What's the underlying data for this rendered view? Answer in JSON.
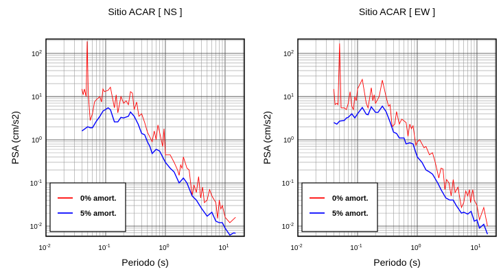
{
  "chart_data": [
    {
      "type": "line",
      "title": "Sitio ACAR [ NS ]",
      "xlabel": "Periodo (s)",
      "ylabel": "PSA (cm/s2)",
      "xscale": "log",
      "yscale": "log",
      "xlim": [
        0.01,
        21
      ],
      "ylim": [
        0.0058,
        215
      ],
      "xticks": [
        {
          "v": 0.01,
          "b": "10",
          "e": "-2"
        },
        {
          "v": 0.1,
          "b": "10",
          "e": "-1"
        },
        {
          "v": 1,
          "b": "10",
          "e": "0"
        },
        {
          "v": 10,
          "b": "10",
          "e": "1"
        }
      ],
      "yticks": [
        {
          "v": 0.01,
          "b": "10",
          "e": "-2"
        },
        {
          "v": 0.1,
          "b": "10",
          "e": "-1"
        },
        {
          "v": 1,
          "b": "10",
          "e": "0"
        },
        {
          "v": 10,
          "b": "10",
          "e": "1"
        },
        {
          "v": 100,
          "b": "10",
          "e": "2"
        }
      ],
      "grid": true,
      "legend_position": "bottom-left",
      "series": [
        {
          "name": "0% amort.",
          "color": "#ff0000",
          "x": [
            0.04,
            0.042,
            0.044,
            0.047,
            0.049,
            0.051,
            0.055,
            0.06,
            0.065,
            0.07,
            0.08,
            0.085,
            0.09,
            0.095,
            0.11,
            0.12,
            0.14,
            0.15,
            0.16,
            0.18,
            0.2,
            0.22,
            0.24,
            0.26,
            0.28,
            0.3,
            0.33,
            0.36,
            0.4,
            0.45,
            0.5,
            0.6,
            0.65,
            0.7,
            0.75,
            0.8,
            0.9,
            0.95,
            1.0,
            1.2,
            1.4,
            1.6,
            1.7,
            1.8,
            1.9,
            2.0,
            2.3,
            2.5,
            2.8,
            3.0,
            3.3,
            3.6,
            3.9,
            4.2,
            4.5,
            5.0,
            5.5,
            6.0,
            7.0,
            7.5,
            8.0,
            8.5,
            9.0,
            10,
            12,
            15
          ],
          "y": [
            15,
            11,
            15,
            10,
            190,
            12,
            2.8,
            4,
            7.5,
            8.5,
            10,
            7.5,
            15,
            13,
            14,
            16.5,
            5.5,
            11,
            4.2,
            10,
            7,
            8,
            6.5,
            13,
            12,
            5,
            7.5,
            3.5,
            4,
            2.5,
            1.5,
            0.9,
            1.6,
            1.0,
            2.2,
            1.5,
            0.7,
            1.8,
            0.45,
            0.45,
            0.3,
            0.2,
            0.15,
            0.26,
            0.22,
            0.4,
            0.22,
            0.2,
            0.05,
            0.09,
            0.06,
            0.14,
            0.045,
            0.08,
            0.035,
            0.04,
            0.07,
            0.05,
            0.035,
            0.015,
            0.04,
            0.025,
            0.03,
            0.016,
            0.012,
            0.016
          ]
        },
        {
          "name": "5% amort.",
          "color": "#0000ff",
          "x": [
            0.04,
            0.045,
            0.05,
            0.055,
            0.06,
            0.07,
            0.08,
            0.09,
            0.11,
            0.12,
            0.14,
            0.16,
            0.18,
            0.2,
            0.24,
            0.26,
            0.3,
            0.35,
            0.4,
            0.45,
            0.5,
            0.55,
            0.6,
            0.7,
            0.8,
            1.0,
            1.2,
            1.4,
            1.7,
            2.0,
            2.3,
            2.8,
            3.3,
            4,
            5,
            6,
            7,
            8,
            9,
            10,
            12,
            14,
            15
          ],
          "y": [
            1.6,
            1.8,
            2.0,
            1.9,
            1.9,
            2.7,
            3.5,
            4.6,
            5.5,
            5.0,
            2.6,
            2.6,
            3.3,
            3.2,
            3.5,
            4.4,
            3.5,
            2.3,
            1.4,
            1.3,
            0.9,
            0.7,
            0.48,
            0.6,
            0.55,
            0.3,
            0.22,
            0.18,
            0.1,
            0.13,
            0.1,
            0.05,
            0.04,
            0.026,
            0.017,
            0.021,
            0.013,
            0.012,
            0.012,
            0.009,
            0.0062,
            0.007,
            0.0068
          ]
        }
      ]
    },
    {
      "type": "line",
      "title": "Sitio ACAR [ EW ]",
      "xlabel": "Periodo (s)",
      "ylabel": "PSA (cm/s2)",
      "xscale": "log",
      "yscale": "log",
      "xlim": [
        0.01,
        21
      ],
      "ylim": [
        0.0058,
        215
      ],
      "xticks": [
        {
          "v": 0.01,
          "b": "10",
          "e": "-2"
        },
        {
          "v": 0.1,
          "b": "10",
          "e": "-1"
        },
        {
          "v": 1,
          "b": "10",
          "e": "0"
        },
        {
          "v": 10,
          "b": "10",
          "e": "1"
        }
      ],
      "yticks": [
        {
          "v": 0.01,
          "b": "10",
          "e": "-2"
        },
        {
          "v": 0.1,
          "b": "10",
          "e": "-1"
        },
        {
          "v": 1,
          "b": "10",
          "e": "0"
        },
        {
          "v": 10,
          "b": "10",
          "e": "1"
        },
        {
          "v": 100,
          "b": "10",
          "e": "2"
        }
      ],
      "grid": true,
      "legend_position": "bottom-left",
      "series": [
        {
          "name": "0% amort.",
          "color": "#ff0000",
          "x": [
            0.04,
            0.042,
            0.045,
            0.047,
            0.05,
            0.053,
            0.06,
            0.065,
            0.07,
            0.075,
            0.08,
            0.085,
            0.09,
            0.095,
            0.1,
            0.12,
            0.14,
            0.15,
            0.17,
            0.18,
            0.19,
            0.2,
            0.23,
            0.26,
            0.3,
            0.33,
            0.35,
            0.38,
            0.42,
            0.45,
            0.5,
            0.55,
            0.65,
            0.7,
            0.75,
            0.8,
            0.85,
            0.95,
            1.0,
            1.1,
            1.3,
            1.4,
            1.6,
            1.8,
            2.0,
            2.3,
            2.5,
            2.7,
            2.9,
            3.1,
            3.4,
            3.7,
            4.0,
            4.3,
            4.8,
            5.5,
            6.0,
            6.5,
            7.0,
            7.5,
            7.8,
            8.5,
            9.0,
            10,
            11,
            13,
            15
          ],
          "y": [
            15,
            6.5,
            7,
            6.5,
            170,
            5.5,
            5.5,
            5,
            7,
            13,
            6,
            5,
            10,
            8,
            15,
            25,
            7,
            5.5,
            16,
            8,
            11,
            7,
            10,
            24,
            10,
            6,
            6.5,
            2,
            2.3,
            4.5,
            2.3,
            3,
            2.5,
            1.2,
            2.3,
            1.8,
            2.1,
            0.75,
            0.9,
            1.0,
            0.65,
            0.7,
            0.45,
            0.5,
            0.3,
            0.13,
            0.22,
            0.21,
            0.07,
            0.12,
            0.1,
            0.05,
            0.12,
            0.06,
            0.08,
            0.027,
            0.035,
            0.065,
            0.05,
            0.07,
            0.035,
            0.07,
            0.04,
            0.03,
            0.014,
            0.027,
            0.01
          ]
        },
        {
          "name": "5% amort.",
          "color": "#0000ff",
          "x": [
            0.04,
            0.045,
            0.05,
            0.06,
            0.065,
            0.07,
            0.08,
            0.09,
            0.1,
            0.12,
            0.14,
            0.15,
            0.17,
            0.2,
            0.22,
            0.26,
            0.3,
            0.35,
            0.4,
            0.45,
            0.5,
            0.6,
            0.65,
            0.75,
            0.85,
            1.0,
            1.2,
            1.4,
            1.6,
            1.8,
            2.2,
            2.5,
            3.0,
            3.5,
            4.0,
            4.5,
            5.5,
            6,
            7,
            8,
            9,
            10,
            11,
            13,
            15
          ],
          "y": [
            2.5,
            2.3,
            2.7,
            2.8,
            3.2,
            3.3,
            4.0,
            3.2,
            4.0,
            5.6,
            3.9,
            3.8,
            5.8,
            4.3,
            4.3,
            6.0,
            4.5,
            2.6,
            1.5,
            1.4,
            1.1,
            1.1,
            0.8,
            0.85,
            0.8,
            0.4,
            0.3,
            0.2,
            0.18,
            0.16,
            0.1,
            0.07,
            0.045,
            0.04,
            0.04,
            0.03,
            0.02,
            0.021,
            0.019,
            0.022,
            0.013,
            0.014,
            0.009,
            0.011,
            0.0065
          ]
        }
      ]
    }
  ]
}
